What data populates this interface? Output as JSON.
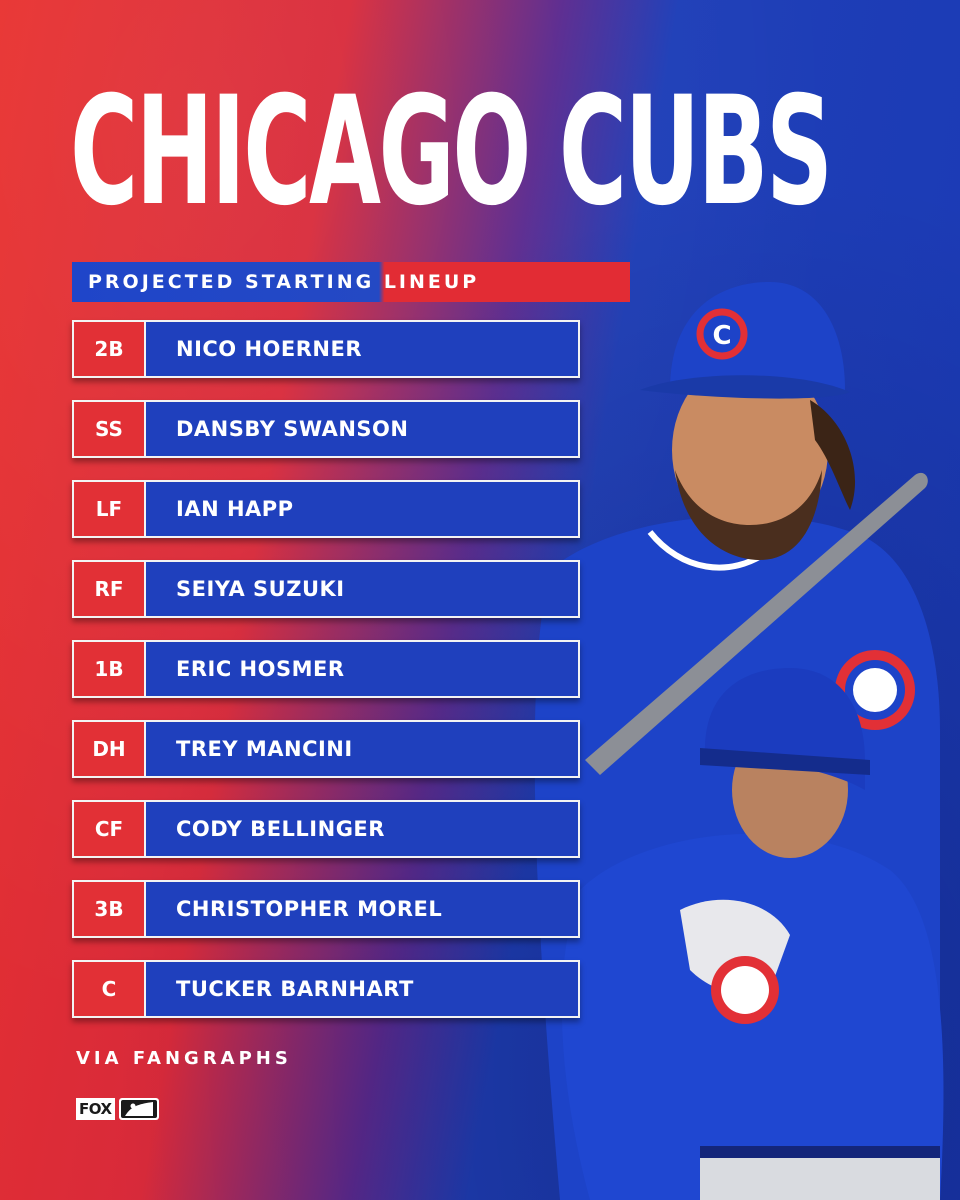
{
  "header": {
    "title": "CHICAGO CUBS",
    "subtitle": "PROJECTED STARTING LINEUP"
  },
  "lineup": [
    {
      "position": "2B",
      "name": "NICO HOERNER"
    },
    {
      "position": "SS",
      "name": "DANSBY SWANSON"
    },
    {
      "position": "LF",
      "name": "IAN HAPP"
    },
    {
      "position": "RF",
      "name": "SEIYA SUZUKI"
    },
    {
      "position": "1B",
      "name": "ERIC HOSMER"
    },
    {
      "position": "DH",
      "name": "TREY MANCINI"
    },
    {
      "position": "CF",
      "name": "CODY BELLINGER"
    },
    {
      "position": "3B",
      "name": "CHRISTOPHER MOREL"
    },
    {
      "position": "C",
      "name": "TUCKER BARNHART"
    }
  ],
  "footer": {
    "source": "VIA FANGRAPHS",
    "network_logo": "FOX",
    "league_logo": "mlb-logo-icon"
  },
  "colors": {
    "red": "#e23036",
    "blue": "#1f40bd",
    "white": "#ffffff"
  },
  "photo": {
    "cap_logo": "C"
  }
}
